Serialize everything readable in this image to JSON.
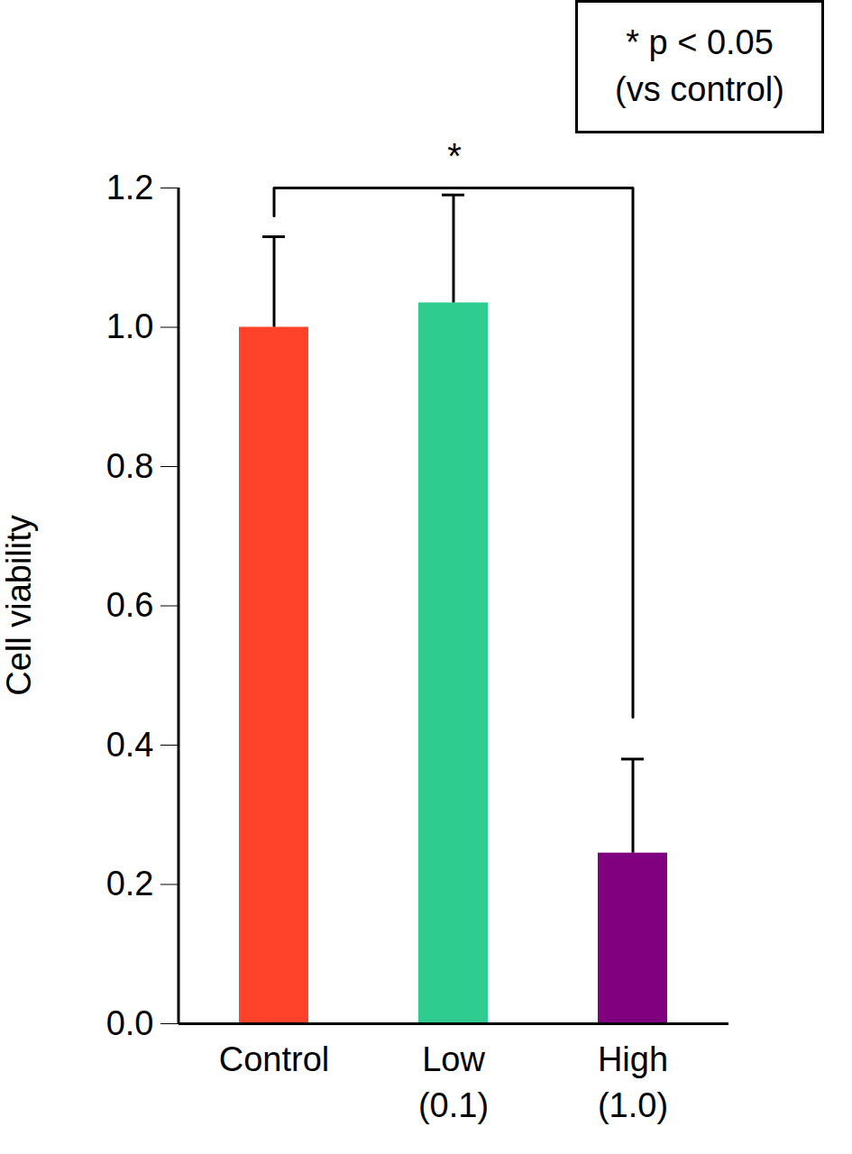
{
  "chart_data": {
    "type": "bar",
    "categories": [
      "Control",
      "Low\n(0.1)",
      "High\n(1.0)"
    ],
    "values": [
      1.0,
      1.035,
      0.245
    ],
    "errors": [
      0.13,
      0.155,
      0.135
    ],
    "colors": [
      "#ff4229",
      "#2ecc8e",
      "#800080"
    ],
    "ylabel": "Cell viability",
    "ylim": [
      0,
      1.2
    ],
    "yticks": [
      {
        "value": 0,
        "label": "0.0"
      },
      {
        "value": 0.2,
        "label": "0.2"
      },
      {
        "value": 0.4,
        "label": "0.4"
      },
      {
        "value": 0.6,
        "label": "0.6"
      },
      {
        "value": 0.8,
        "label": "0.8"
      },
      {
        "value": 1.0,
        "label": "1.0"
      },
      {
        "value": 1.2,
        "label": "1.2"
      }
    ],
    "annotations": [
      {
        "text": "* p < 0.05\n(vs control)"
      }
    ],
    "significance": [
      {
        "from": "Control",
        "to": "High\n(1.0)",
        "label": "*"
      }
    ]
  }
}
